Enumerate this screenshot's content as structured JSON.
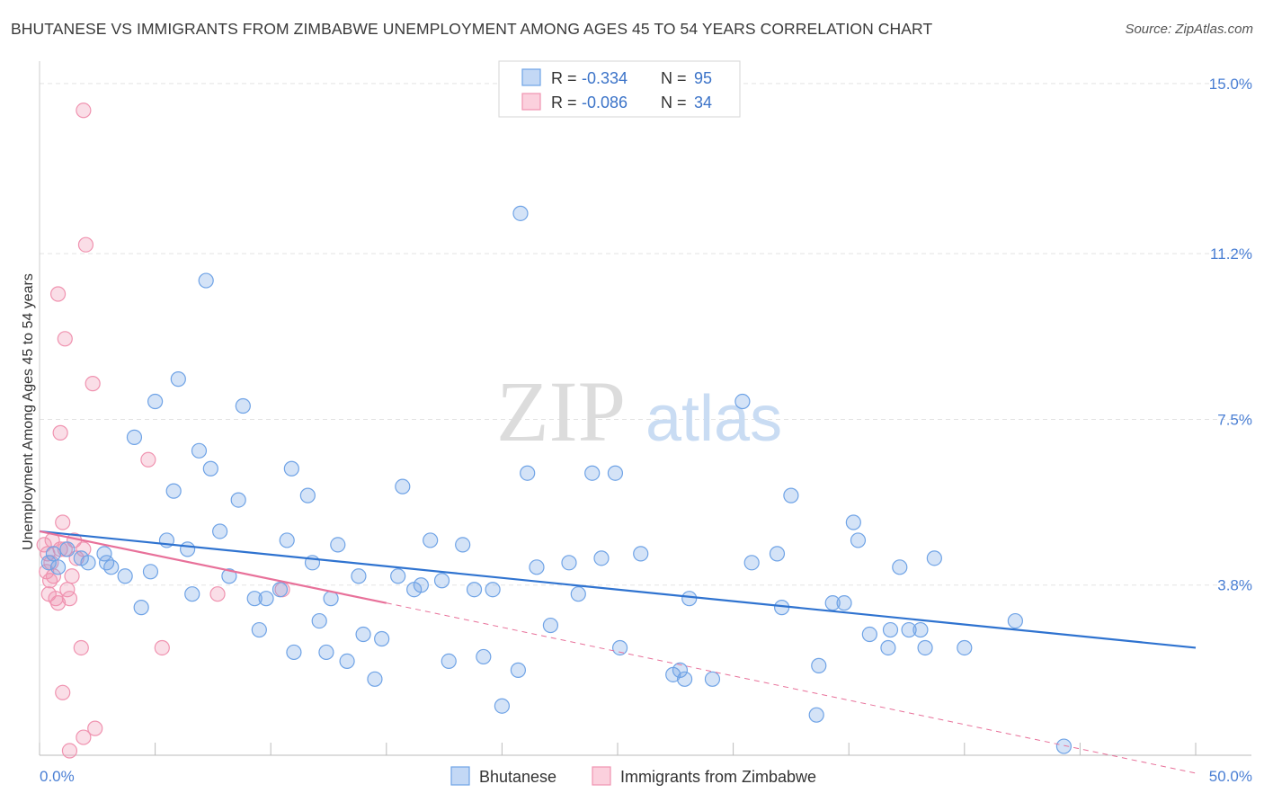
{
  "title": "BHUTANESE VS IMMIGRANTS FROM ZIMBABWE UNEMPLOYMENT AMONG AGES 45 TO 54 YEARS CORRELATION CHART",
  "source": "Source: ZipAtlas.com",
  "watermark": {
    "zip": "ZIP",
    "atlas": "atlas"
  },
  "legend": {
    "r_label": "R =",
    "n_label": "N =",
    "rows": [
      {
        "series": "Bhutanese",
        "r": "-0.334",
        "n": "95"
      },
      {
        "series": "Immigrants from Zimbabwe",
        "r": "-0.086",
        "n": "34"
      }
    ]
  },
  "chart_data": {
    "type": "scatter",
    "title": "BHUTANESE VS IMMIGRANTS FROM ZIMBABWE UNEMPLOYMENT AMONG AGES 45 TO 54 YEARS CORRELATION CHART",
    "xlabel": "",
    "ylabel": "Unemployment Among Ages 45 to 54 years",
    "xlim": [
      0,
      50
    ],
    "ylim": [
      0,
      15.5
    ],
    "x_tick_labels": [
      "0.0%",
      "50.0%"
    ],
    "y_ticks": [
      3.8,
      7.5,
      11.2,
      15.0
    ],
    "y_tick_labels": [
      "3.8%",
      "7.5%",
      "11.2%",
      "15.0%"
    ],
    "grid": true,
    "colors": {
      "Bhutanese": "#6fa3e6",
      "Immigrants from Zimbabwe": "#f093b0",
      "blue_line": "#2f73d0",
      "pink_line": "#e8719a"
    },
    "series": [
      {
        "name": "Bhutanese",
        "trend": {
          "x": [
            0,
            50
          ],
          "y": [
            5.0,
            2.4
          ]
        },
        "points": [
          [
            0.4,
            4.3
          ],
          [
            0.6,
            4.5
          ],
          [
            0.8,
            4.2
          ],
          [
            1.2,
            4.6
          ],
          [
            1.8,
            4.4
          ],
          [
            2.1,
            4.3
          ],
          [
            2.8,
            4.5
          ],
          [
            2.9,
            4.3
          ],
          [
            3.1,
            4.2
          ],
          [
            3.7,
            4.0
          ],
          [
            4.1,
            7.1
          ],
          [
            4.4,
            3.3
          ],
          [
            4.8,
            4.1
          ],
          [
            5.0,
            7.9
          ],
          [
            5.5,
            4.8
          ],
          [
            5.8,
            5.9
          ],
          [
            6.0,
            8.4
          ],
          [
            6.4,
            4.6
          ],
          [
            6.6,
            3.6
          ],
          [
            6.9,
            6.8
          ],
          [
            7.2,
            10.6
          ],
          [
            7.4,
            6.4
          ],
          [
            7.8,
            5.0
          ],
          [
            8.2,
            4.0
          ],
          [
            8.6,
            5.7
          ],
          [
            8.8,
            7.8
          ],
          [
            9.3,
            3.5
          ],
          [
            9.5,
            2.8
          ],
          [
            9.8,
            3.5
          ],
          [
            10.4,
            3.7
          ],
          [
            10.7,
            4.8
          ],
          [
            10.9,
            6.4
          ],
          [
            11.0,
            2.3
          ],
          [
            11.6,
            5.8
          ],
          [
            11.8,
            4.3
          ],
          [
            12.1,
            3.0
          ],
          [
            12.4,
            2.3
          ],
          [
            12.6,
            3.5
          ],
          [
            12.9,
            4.7
          ],
          [
            13.3,
            2.1
          ],
          [
            13.8,
            4.0
          ],
          [
            14.0,
            2.7
          ],
          [
            14.5,
            1.7
          ],
          [
            14.8,
            2.6
          ],
          [
            15.5,
            4.0
          ],
          [
            15.7,
            6.0
          ],
          [
            16.2,
            3.7
          ],
          [
            16.5,
            3.8
          ],
          [
            16.9,
            4.8
          ],
          [
            17.4,
            3.9
          ],
          [
            17.7,
            2.1
          ],
          [
            18.3,
            4.7
          ],
          [
            18.8,
            3.7
          ],
          [
            19.2,
            2.2
          ],
          [
            19.6,
            3.7
          ],
          [
            20.0,
            1.1
          ],
          [
            20.8,
            12.1
          ],
          [
            20.7,
            1.9
          ],
          [
            21.1,
            6.3
          ],
          [
            21.5,
            4.2
          ],
          [
            22.1,
            2.9
          ],
          [
            22.9,
            4.3
          ],
          [
            23.3,
            3.6
          ],
          [
            23.9,
            6.3
          ],
          [
            24.3,
            4.4
          ],
          [
            24.9,
            6.3
          ],
          [
            25.1,
            2.4
          ],
          [
            26.0,
            4.5
          ],
          [
            27.4,
            1.8
          ],
          [
            27.7,
            1.9
          ],
          [
            27.9,
            1.7
          ],
          [
            28.1,
            3.5
          ],
          [
            29.1,
            1.7
          ],
          [
            30.4,
            7.9
          ],
          [
            30.8,
            4.3
          ],
          [
            31.9,
            4.5
          ],
          [
            32.1,
            3.3
          ],
          [
            32.5,
            5.8
          ],
          [
            33.7,
            2.0
          ],
          [
            33.6,
            0.9
          ],
          [
            34.3,
            3.4
          ],
          [
            34.8,
            3.4
          ],
          [
            35.2,
            5.2
          ],
          [
            35.4,
            4.8
          ],
          [
            35.9,
            2.7
          ],
          [
            36.7,
            2.4
          ],
          [
            36.8,
            2.8
          ],
          [
            37.2,
            4.2
          ],
          [
            37.6,
            2.8
          ],
          [
            38.1,
            2.8
          ],
          [
            38.3,
            2.4
          ],
          [
            38.7,
            4.4
          ],
          [
            40.0,
            2.4
          ],
          [
            42.2,
            3.0
          ],
          [
            44.3,
            0.2
          ]
        ]
      },
      {
        "name": "Immigrants from Zimbabwe",
        "trend": {
          "x": [
            0,
            15
          ],
          "y": [
            5.0,
            3.4
          ]
        },
        "trend_dashed": {
          "x": [
            15,
            50
          ],
          "y": [
            3.4,
            -0.4
          ]
        },
        "points": [
          [
            0.2,
            4.7
          ],
          [
            0.3,
            4.1
          ],
          [
            0.35,
            4.5
          ],
          [
            0.4,
            3.6
          ],
          [
            0.45,
            3.9
          ],
          [
            0.5,
            4.3
          ],
          [
            0.55,
            4.8
          ],
          [
            0.6,
            4.0
          ],
          [
            0.7,
            3.5
          ],
          [
            0.8,
            3.4
          ],
          [
            0.9,
            4.6
          ],
          [
            1.0,
            5.2
          ],
          [
            1.1,
            4.6
          ],
          [
            1.2,
            3.7
          ],
          [
            1.3,
            3.5
          ],
          [
            1.4,
            4.0
          ],
          [
            1.5,
            4.8
          ],
          [
            1.6,
            4.4
          ],
          [
            1.8,
            2.4
          ],
          [
            1.9,
            14.4
          ],
          [
            2.0,
            11.4
          ],
          [
            1.9,
            4.6
          ],
          [
            0.9,
            7.2
          ],
          [
            0.8,
            10.3
          ],
          [
            1.1,
            9.3
          ],
          [
            1.9,
            0.4
          ],
          [
            1.3,
            0.1
          ],
          [
            2.4,
            0.6
          ],
          [
            2.3,
            8.3
          ],
          [
            1.0,
            1.4
          ],
          [
            4.7,
            6.6
          ],
          [
            5.3,
            2.4
          ],
          [
            7.7,
            3.6
          ],
          [
            10.5,
            3.7
          ]
        ]
      }
    ]
  }
}
